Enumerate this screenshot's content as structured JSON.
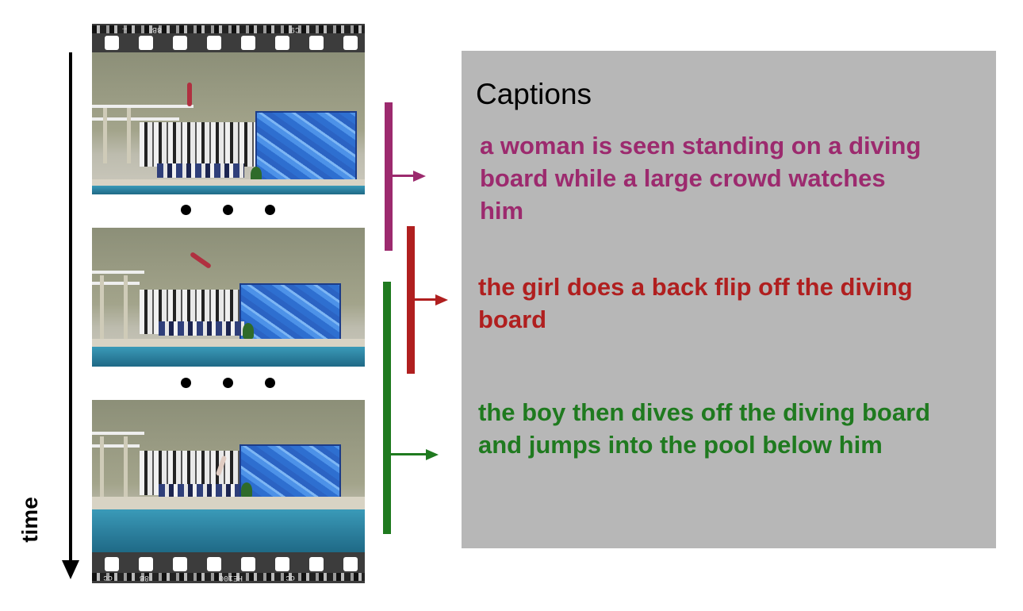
{
  "time_axis": {
    "label": "time"
  },
  "film_strip": {
    "edge_text_top": [
      "→",
      "8B",
      "C9"
    ],
    "edge_text_bottom": [
      "cc",
      "8B",
      "HE100",
      "cc"
    ],
    "frames": [
      {
        "description_icon": "diver-standing"
      },
      {
        "description_icon": "diver-flipping"
      },
      {
        "description_icon": "diver-entering-water"
      }
    ]
  },
  "captions_panel": {
    "title": "Captions",
    "items": [
      {
        "text": "a woman is seen standing on a diving board while a large crowd watches him",
        "color": "#9c2a6e"
      },
      {
        "text": "the girl does a back flip off the diving board",
        "color": "#b01f1f"
      },
      {
        "text": "the boy then dives off the diving board and jumps into the pool below him",
        "color": "#1f7a1f"
      }
    ]
  },
  "colors": {
    "segment_1": "#9c2a6e",
    "segment_2": "#b01f1f",
    "segment_3": "#1f7a1f",
    "panel_background": "#b7b7b7"
  }
}
